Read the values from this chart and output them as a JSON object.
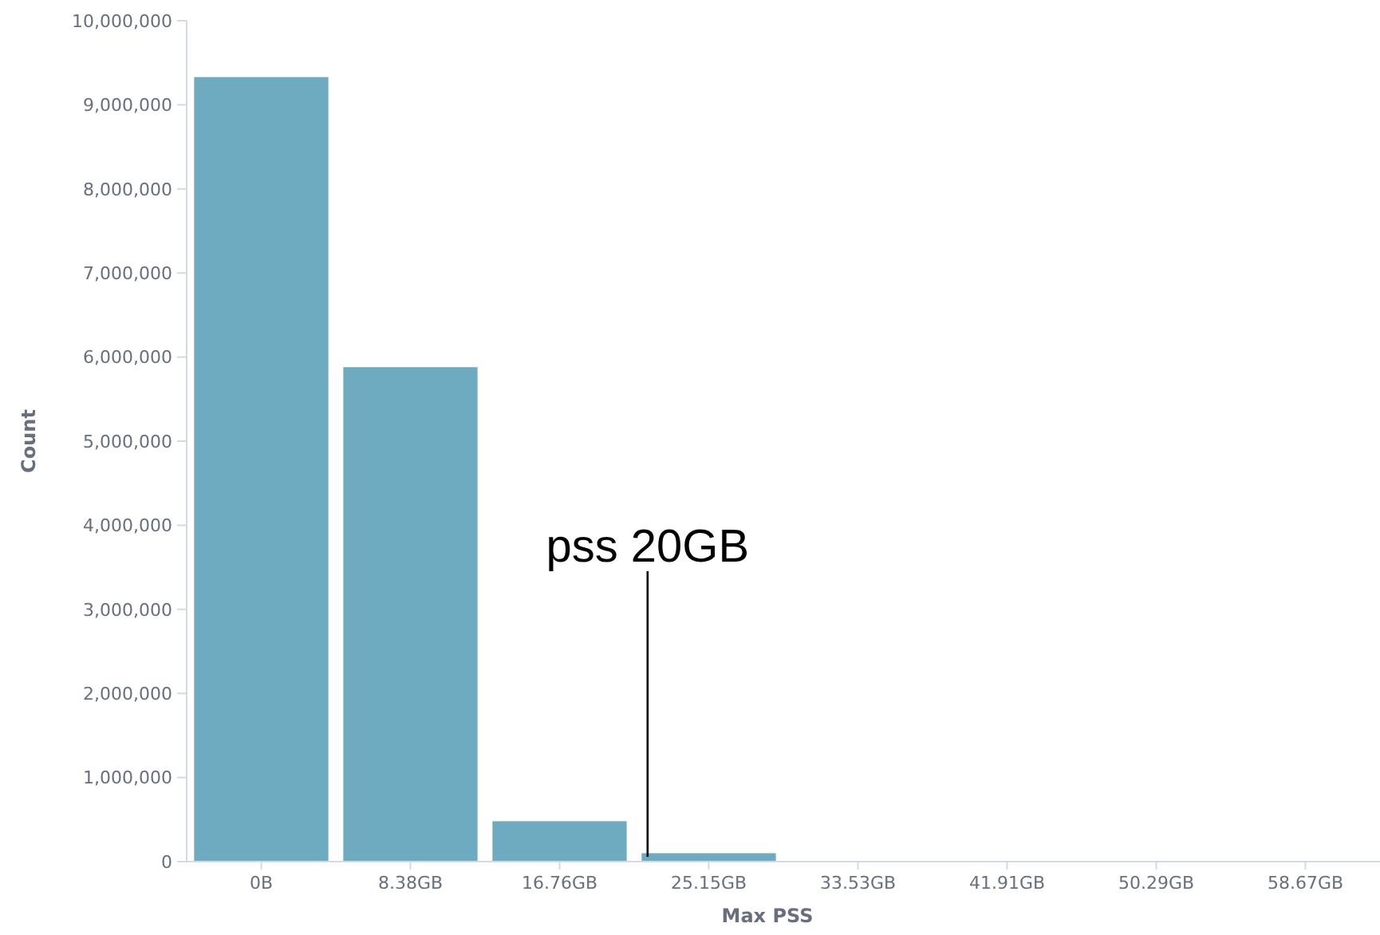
{
  "chart_data": {
    "type": "bar",
    "xlabel": "Max PSS",
    "ylabel": "Count",
    "categories": [
      "0B",
      "8.38GB",
      "16.76GB",
      "25.15GB",
      "33.53GB",
      "41.91GB",
      "50.29GB",
      "58.67GB"
    ],
    "values": [
      9330000,
      5880000,
      480000,
      100000,
      0,
      0,
      0,
      0
    ],
    "color": "#6eabc0",
    "ylim": [
      0,
      10000000
    ],
    "yticks": [
      {
        "value": 0,
        "label": "0"
      },
      {
        "value": 1000000,
        "label": "1,000,000"
      },
      {
        "value": 2000000,
        "label": "2,000,000"
      },
      {
        "value": 3000000,
        "label": "3,000,000"
      },
      {
        "value": 4000000,
        "label": "4,000,000"
      },
      {
        "value": 5000000,
        "label": "5,000,000"
      },
      {
        "value": 6000000,
        "label": "6,000,000"
      },
      {
        "value": 7000000,
        "label": "7,000,000"
      },
      {
        "value": 8000000,
        "label": "8,000,000"
      },
      {
        "value": 9000000,
        "label": "9,000,000"
      },
      {
        "value": 10000000,
        "label": "10,000,000"
      }
    ],
    "annotations": [
      {
        "text": "pss 20GB",
        "y": 0
      }
    ]
  }
}
